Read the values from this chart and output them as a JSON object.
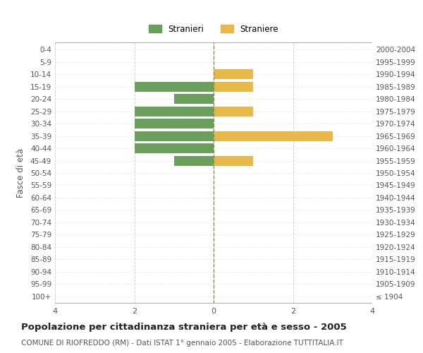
{
  "age_groups": [
    "100+",
    "95-99",
    "90-94",
    "85-89",
    "80-84",
    "75-79",
    "70-74",
    "65-69",
    "60-64",
    "55-59",
    "50-54",
    "45-49",
    "40-44",
    "35-39",
    "30-34",
    "25-29",
    "20-24",
    "15-19",
    "10-14",
    "5-9",
    "0-4"
  ],
  "birth_years": [
    "≤ 1904",
    "1905-1909",
    "1910-1914",
    "1915-1919",
    "1920-1924",
    "1925-1929",
    "1930-1934",
    "1935-1939",
    "1940-1944",
    "1945-1949",
    "1950-1954",
    "1955-1959",
    "1960-1964",
    "1965-1969",
    "1970-1974",
    "1975-1979",
    "1980-1984",
    "1985-1989",
    "1990-1994",
    "1995-1999",
    "2000-2004"
  ],
  "males": [
    0,
    0,
    0,
    0,
    0,
    0,
    0,
    0,
    0,
    0,
    0,
    1,
    2,
    2,
    2,
    2,
    1,
    2,
    0,
    0,
    0
  ],
  "females": [
    0,
    0,
    0,
    0,
    0,
    0,
    0,
    0,
    0,
    0,
    0,
    1,
    0,
    3,
    0,
    1,
    0,
    1,
    1,
    0,
    0
  ],
  "male_color": "#6a9f5b",
  "female_color": "#e8b84b",
  "center_line_color": "#8b8b4e",
  "grid_color": "#d0d0d0",
  "title": "Popolazione per cittadinanza straniera per età e sesso - 2005",
  "subtitle": "COMUNE DI RIOFREDDO (RM) - Dati ISTAT 1° gennaio 2005 - Elaborazione TUTTITALIA.IT",
  "ylabel_left": "Fasce di età",
  "legend_male": "Stranieri",
  "legend_female": "Straniere",
  "xlim": 4,
  "background_color": "#ffffff",
  "bar_height": 0.8
}
